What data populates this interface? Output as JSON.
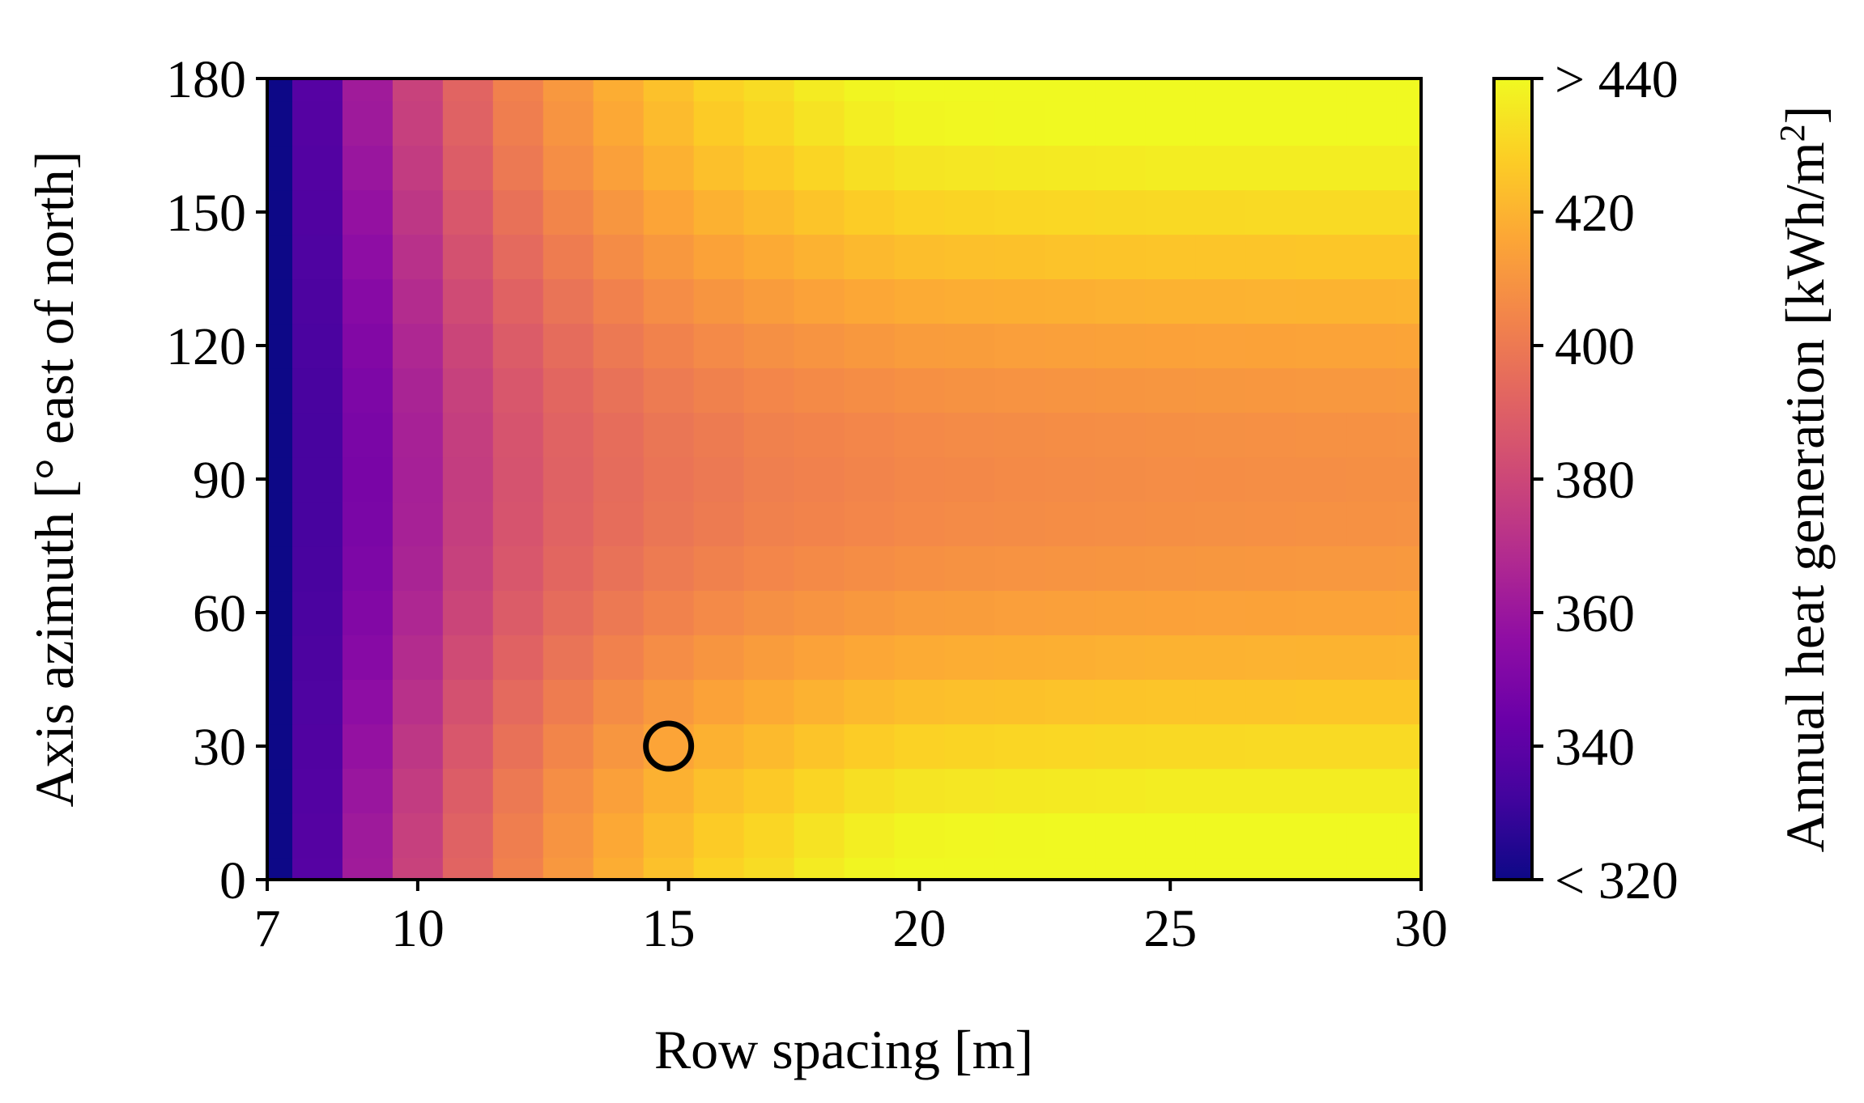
{
  "chart_data": {
    "type": "heatmap",
    "xlabel": "Row spacing [m]",
    "ylabel": "Axis azimuth [° east of north]",
    "x_ticks": [
      "7",
      "10",
      "15",
      "20",
      "25",
      "30"
    ],
    "x_tick_values": [
      7,
      10,
      15,
      20,
      25,
      30
    ],
    "y_ticks": [
      "0",
      "30",
      "60",
      "90",
      "120",
      "150",
      "180"
    ],
    "y_tick_values": [
      0,
      30,
      60,
      90,
      120,
      150,
      180
    ],
    "xlim": [
      7,
      30
    ],
    "ylim": [
      0,
      180
    ],
    "x_cells": [
      7,
      8,
      9,
      10,
      11,
      12,
      13,
      14,
      15,
      16,
      17,
      18,
      19,
      20,
      21,
      22,
      23,
      24,
      25,
      26,
      27,
      28,
      29,
      30
    ],
    "y_cells": [
      0,
      10,
      20,
      30,
      40,
      50,
      60,
      70,
      80,
      90,
      100,
      110,
      120,
      130,
      140,
      150,
      160,
      170,
      180
    ],
    "value_model": {
      "description_values_kWh_per_m2": "annual heat generation; lowest at 7 m (~320), rising with row spacing; dip near 90° azimuth",
      "edge_profile": [
        [
          7,
          320
        ],
        [
          8,
          338
        ],
        [
          9,
          362
        ],
        [
          10,
          378
        ],
        [
          11,
          392
        ],
        [
          12,
          403
        ],
        [
          13,
          411
        ],
        [
          14,
          418
        ],
        [
          15,
          424
        ],
        [
          16,
          429
        ],
        [
          17,
          432
        ],
        [
          18,
          436
        ],
        [
          19,
          439
        ],
        [
          20,
          441
        ],
        [
          22,
          442
        ],
        [
          25,
          443
        ],
        [
          30,
          443
        ]
      ],
      "center_profile_at_90deg": [
        [
          7,
          320
        ],
        [
          8,
          334
        ],
        [
          9,
          349
        ],
        [
          10,
          364
        ],
        [
          11,
          376
        ],
        [
          12,
          385
        ],
        [
          13,
          391
        ],
        [
          14,
          395
        ],
        [
          15,
          398
        ],
        [
          16,
          400
        ],
        [
          17,
          402
        ],
        [
          18,
          403
        ],
        [
          19,
          404
        ],
        [
          20,
          405
        ],
        [
          22,
          406
        ],
        [
          25,
          407
        ],
        [
          30,
          408
        ]
      ]
    },
    "marker": {
      "x": 15,
      "y": 30,
      "shape": "open circle",
      "color": "#000000"
    },
    "colormap": "plasma",
    "colorbar": {
      "label": "Annual heat generation [kWh/m²]",
      "label_main": "Annual heat generation [kWh/m",
      "label_sup": "2",
      "label_end": "]",
      "range": [
        320,
        440
      ],
      "ticks": [
        "< 320",
        "340",
        "360",
        "380",
        "400",
        "420",
        "> 440"
      ],
      "tick_values": [
        320,
        340,
        360,
        380,
        400,
        420,
        440
      ]
    },
    "grid": false,
    "legend": "none"
  }
}
